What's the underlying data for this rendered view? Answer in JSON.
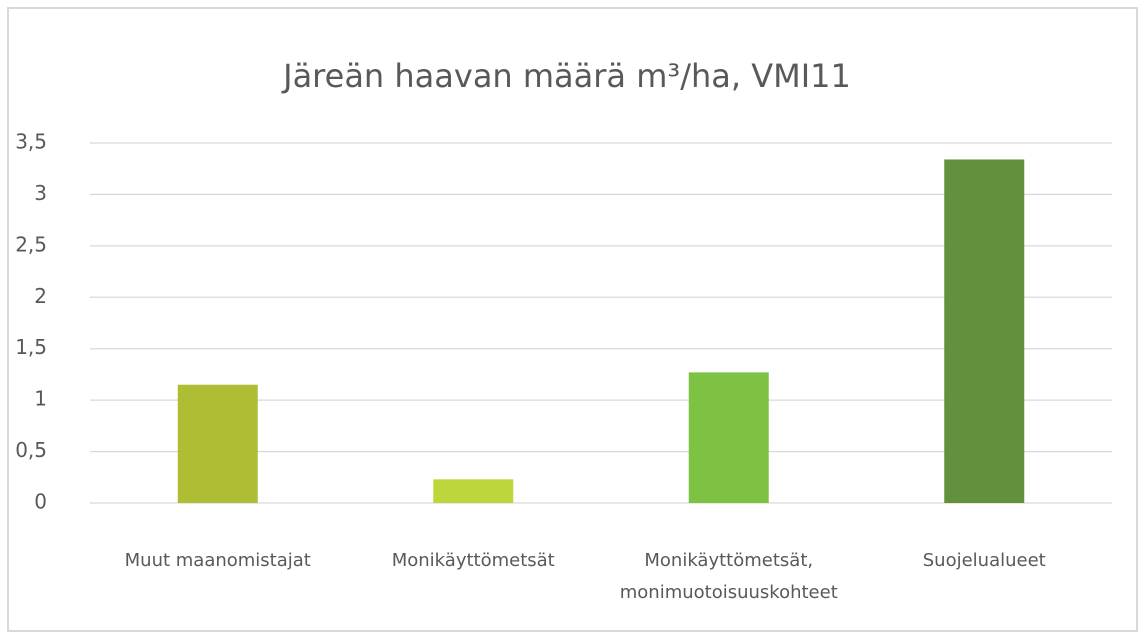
{
  "chart_data": {
    "type": "bar",
    "title": "Järeän haavan määrä m³/ha, VMI11",
    "categories": [
      "Muut maanomistajat",
      "Monikäyttömetsät",
      "Monikäyttömetsät, monimuotoisuuskohteet",
      "Suojelualueet"
    ],
    "values": [
      1.15,
      0.23,
      1.27,
      3.34
    ],
    "colors": [
      "#afbd34",
      "#bcd63c",
      "#7dc242",
      "#61913c"
    ],
    "ylim": [
      0,
      3.5
    ],
    "yticks": [
      0,
      {
        "value": 0.5,
        "label": "0,5"
      },
      1,
      {
        "value": 1.5,
        "label": "1,5"
      },
      2,
      {
        "value": 2.5,
        "label": "2,5"
      },
      3,
      {
        "value": 3.5,
        "label": "3,5"
      }
    ],
    "grid": true
  }
}
